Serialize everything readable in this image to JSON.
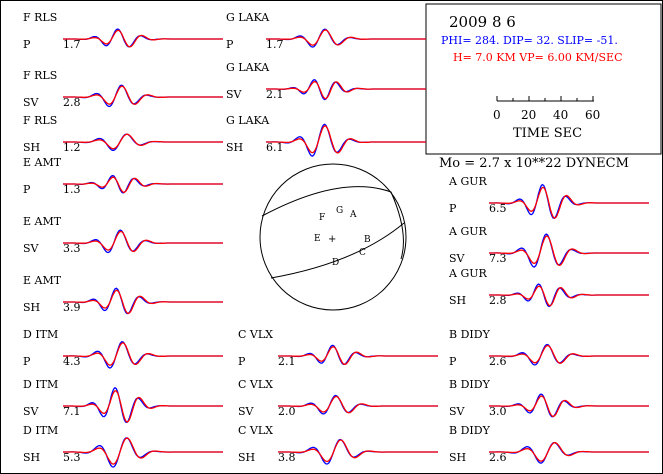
{
  "colors": {
    "observed": "#0000ff",
    "synthetic": "#ff0000",
    "ink": "#000000"
  },
  "header": {
    "date": "2009  8  6",
    "mechanism": "PHI= 284. DIP= 32. SLIP= -51.",
    "depth": "H=  7.0 KM  VP= 6.00 KM/SEC",
    "time_axis_ticks": [
      "0",
      "20",
      "40",
      "60"
    ],
    "time_axis_label": "TIME  SEC",
    "moment": "Mo =  2.7 x 10**22 DYNECM"
  },
  "traces": [
    {
      "station": "F RLS",
      "phase": "P",
      "amp": "1.7",
      "tone": 1.1,
      "shift": 0.0
    },
    {
      "station": "F RLS",
      "phase": "SV",
      "amp": "2.8",
      "tone": 1.0,
      "shift": 0.3
    },
    {
      "station": "F RLS",
      "phase": "SH",
      "amp": "1.2",
      "tone": 0.9,
      "shift": 0.5
    },
    {
      "station": "E AMT",
      "phase": "P",
      "amp": "1.3",
      "tone": 1.2,
      "shift": 0.2
    },
    {
      "station": "E AMT",
      "phase": "SV",
      "amp": "3.3",
      "tone": 1.0,
      "shift": 0.6
    },
    {
      "station": "E AMT",
      "phase": "SH",
      "amp": "3.9",
      "tone": 1.1,
      "shift": 0.4
    },
    {
      "station": "D ITM",
      "phase": "P",
      "amp": "4.3",
      "tone": 1.0,
      "shift": 0.1
    },
    {
      "station": "D ITM",
      "phase": "SV",
      "amp": "7.1",
      "tone": 1.1,
      "shift": 0.7
    },
    {
      "station": "D ITM",
      "phase": "SH",
      "amp": "5.3",
      "tone": 0.9,
      "shift": 0.5
    },
    {
      "station": "G LAKA",
      "phase": "P",
      "amp": "1.7",
      "tone": 1.0,
      "shift": 0.2
    },
    {
      "station": "G LAKA",
      "phase": "SV",
      "amp": "2.1",
      "tone": 1.2,
      "shift": 0.6
    },
    {
      "station": "G LAKA",
      "phase": "SH",
      "amp": "6.1",
      "tone": 1.0,
      "shift": 0.3
    },
    {
      "station": "C VLX",
      "phase": "P",
      "amp": "2.1",
      "tone": 1.1,
      "shift": 0.0
    },
    {
      "station": "C VLX",
      "phase": "SV",
      "amp": "2.0",
      "tone": 1.0,
      "shift": 0.5
    },
    {
      "station": "C VLX",
      "phase": "SH",
      "amp": "3.8",
      "tone": 0.9,
      "shift": 0.8
    },
    {
      "station": "A GUR",
      "phase": "P",
      "amp": "6.5",
      "tone": 1.1,
      "shift": 0.3
    },
    {
      "station": "A GUR",
      "phase": "SV",
      "amp": "7.3",
      "tone": 1.0,
      "shift": 0.6
    },
    {
      "station": "A GUR",
      "phase": "SH",
      "amp": "2.8",
      "tone": 1.2,
      "shift": 0.2
    },
    {
      "station": "B DIDY",
      "phase": "P",
      "amp": "2.6",
      "tone": 1.0,
      "shift": 0.4
    },
    {
      "station": "B DIDY",
      "phase": "SV",
      "amp": "3.0",
      "tone": 1.1,
      "shift": 0.7
    },
    {
      "station": "B DIDY",
      "phase": "SH",
      "amp": "2.6",
      "tone": 0.9,
      "shift": 0.1
    }
  ],
  "focal_sphere": {
    "station_marks": [
      "A",
      "B",
      "C",
      "D",
      "E",
      "F",
      "G"
    ],
    "center_mark": "+"
  }
}
